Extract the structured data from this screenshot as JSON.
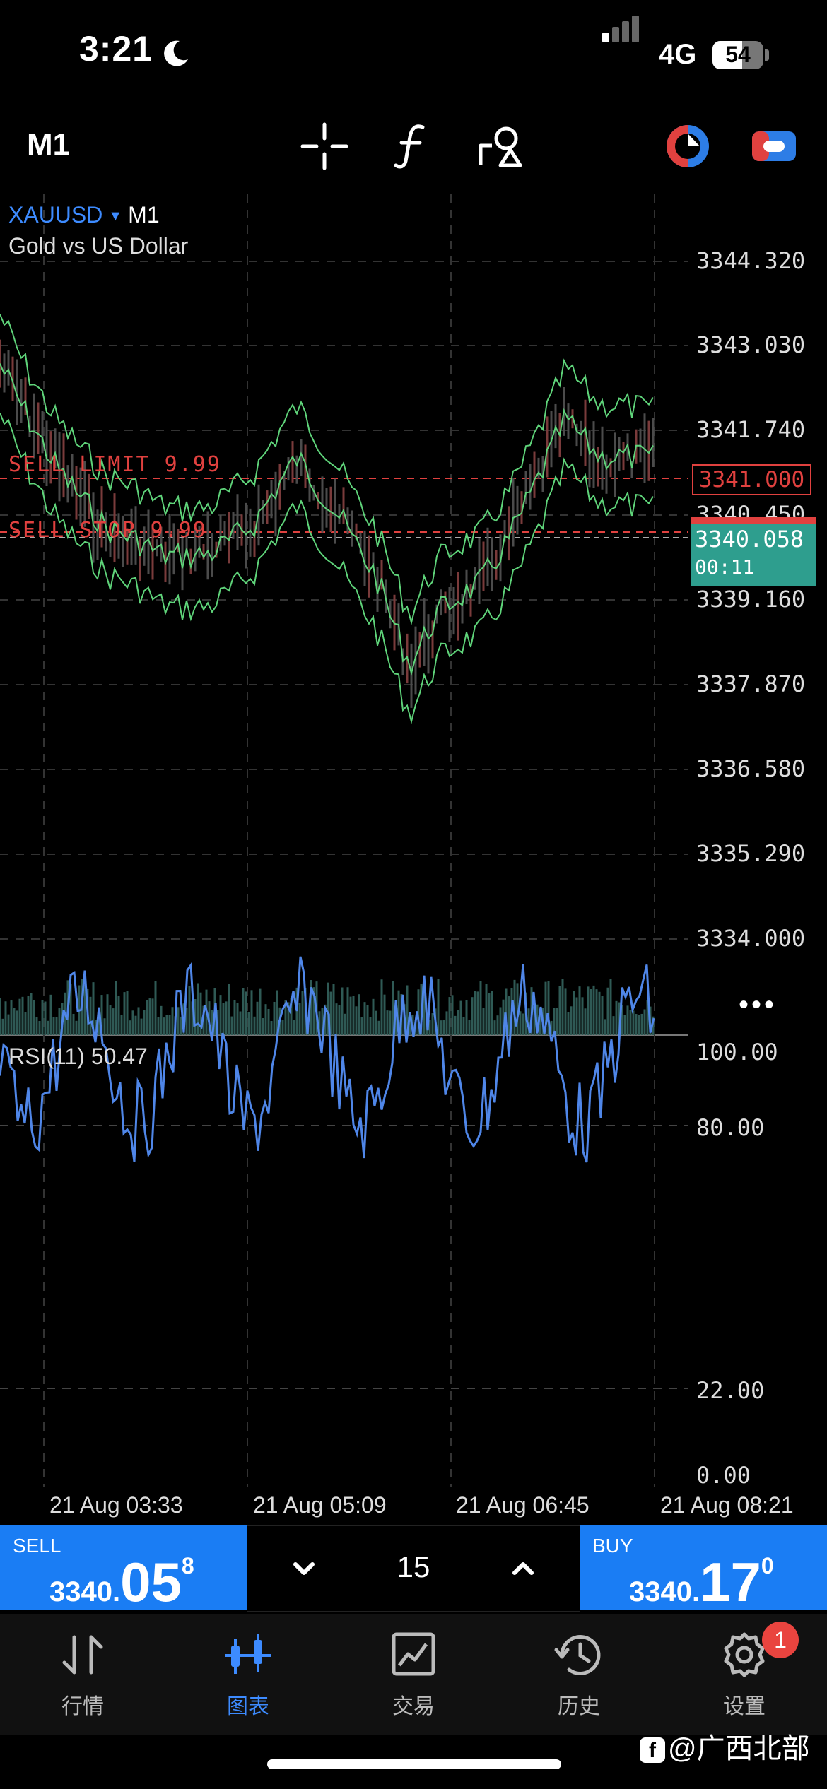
{
  "status_bar": {
    "time": "3:21",
    "network": "4G",
    "battery": "54"
  },
  "toolbar": {
    "timeframe": "M1",
    "icons": [
      "crosshair-icon",
      "function-icon",
      "shapes-icon",
      "color-icon",
      "toggle-icon"
    ]
  },
  "chart": {
    "symbol": "XAUUSD",
    "timeframe": "M1",
    "description": "Gold vs US Dollar",
    "price_axis": [
      "3344.320",
      "3343.030",
      "3341.740",
      "3340.450",
      "3339.160",
      "3337.870",
      "3336.580",
      "3335.290",
      "3334.000"
    ],
    "sell_limit_label": "SELL LIMIT 9.99",
    "sell_stop_label": "SELL STOP 9.99",
    "sell_limit_price": "3341.000",
    "current_price": "3340.058",
    "countdown": "00:11",
    "rsi_label": "RSI(11) 50.47",
    "rsi_axis": [
      "100.00",
      "80.00",
      "22.00",
      "0.00"
    ],
    "time_axis": [
      "21 Aug 03:33",
      "21 Aug 05:09",
      "21 Aug 06:45",
      "21 Aug 08:21"
    ],
    "colors": {
      "bands": "#5fd47a",
      "rsi": "#4f86e8",
      "orders": "#e0413f",
      "bid": "#2e9e8e"
    }
  },
  "trade": {
    "sell_title": "SELL",
    "sell_price_a": "3340.",
    "sell_price_b": "05",
    "sell_price_c": "8",
    "buy_title": "BUY",
    "buy_price_a": "3340.",
    "buy_price_b": "17",
    "buy_price_c": "0",
    "quantity": "15"
  },
  "nav": {
    "items": [
      {
        "label": "行情",
        "icon": "quotes-icon"
      },
      {
        "label": "图表",
        "icon": "chart-icon"
      },
      {
        "label": "交易",
        "icon": "trade-icon"
      },
      {
        "label": "历史",
        "icon": "history-icon"
      },
      {
        "label": "设置",
        "icon": "settings-icon"
      }
    ],
    "badge": "1"
  },
  "watermark": "@广西北部"
}
